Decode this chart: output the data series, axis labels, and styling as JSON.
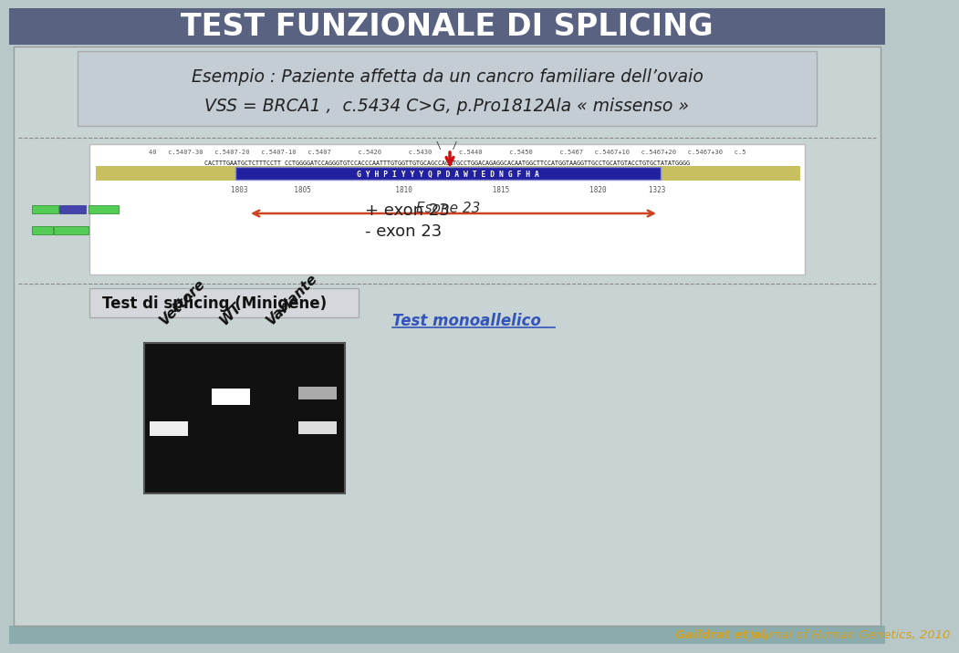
{
  "title": "TEST FUNZIONALE DI SPLICING",
  "title_bg": "#5a6282",
  "title_color": "#ffffff",
  "title_fontsize": 24,
  "main_bg": "#b8c8c8",
  "slide_bg": "#c8d4d4",
  "header_box_color": "#c0c8d0",
  "header_text_line1": "Esempio : Paziente affetta da un cancro familiare dell’ovaio",
  "header_text_line2": "VSS = BRCA1 ,  c.5434 C>G, p.Pro1812Ala « missenso »",
  "genomic_bg": "#ffffff",
  "exon_bar_color": "#c8c060",
  "blue_box_color": "#2020a0",
  "blue_box_letters": "G Y H P I Y Y Y Q P D A W T E D N G F H A",
  "esone23_text": "Esone 23",
  "esone23_arrow_color": "#cc4422",
  "red_arrow_color": "#cc1111",
  "splicing_label": "Test di splicing (Minigene)",
  "label_vettore": "Vettore",
  "label_wt": "WT",
  "label_variante": "Variante",
  "label_test": "Test monoallelico",
  "label_test_color": "#3355bb",
  "exon23_plus": "+ exon 23",
  "exon23_minus": "- exon 23",
  "citation_bold": "Gaildrat et al,",
  "citation_italic": " Journal of Human Genetics, 2010",
  "citation_color": "#d4a020",
  "footer_bg": "#8aacac",
  "gel_bg": "#111111"
}
